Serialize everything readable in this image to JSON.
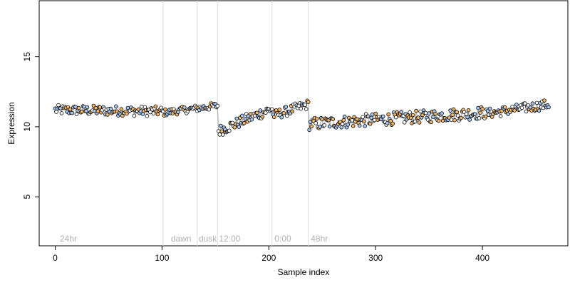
{
  "chart_data": {
    "type": "scatter",
    "title": "",
    "xlabel": "Sample index",
    "ylabel": "Expression",
    "xlim": [
      -15,
      480
    ],
    "ylim": [
      1.5,
      19
    ],
    "x_ticks": [
      0,
      100,
      200,
      300,
      400
    ],
    "y_ticks": [
      5,
      10,
      15
    ],
    "vlines": [
      101,
      133,
      152,
      203,
      237
    ],
    "annotations": [
      {
        "text": "24hr",
        "x": 3
      },
      {
        "text": "dawn",
        "x": 107
      },
      {
        "text": "dusk",
        "x": 133
      },
      {
        "text": "12:00",
        "x": 152
      },
      {
        "text": "0:00",
        "x": 204
      },
      {
        "text": "48hr",
        "x": 238
      }
    ],
    "annotation_y": 2,
    "colors": {
      "orange": "#f5b86b",
      "blue": "#a8c8f0",
      "line": "#a8a8a8",
      "grid": "#dcdcdc",
      "annotation": "#b0b0b0"
    },
    "segment_levels": [
      {
        "x": [
          0,
          100
        ],
        "start": 11.2,
        "end": 11.1,
        "noise": 0.35
      },
      {
        "x": [
          101,
          152
        ],
        "start": 11.0,
        "end": 11.5,
        "noise": 0.25
      },
      {
        "x": [
          153,
          203
        ],
        "start": 9.7,
        "end": 11.3,
        "noise": 0.4
      },
      {
        "x": [
          204,
          237
        ],
        "start": 10.8,
        "end": 11.6,
        "noise": 0.35
      },
      {
        "x": [
          238,
          400
        ],
        "start": 10.2,
        "end": 11.0,
        "noise": 0.45
      },
      {
        "x": [
          401,
          462
        ],
        "start": 10.9,
        "end": 11.6,
        "noise": 0.35
      }
    ]
  }
}
